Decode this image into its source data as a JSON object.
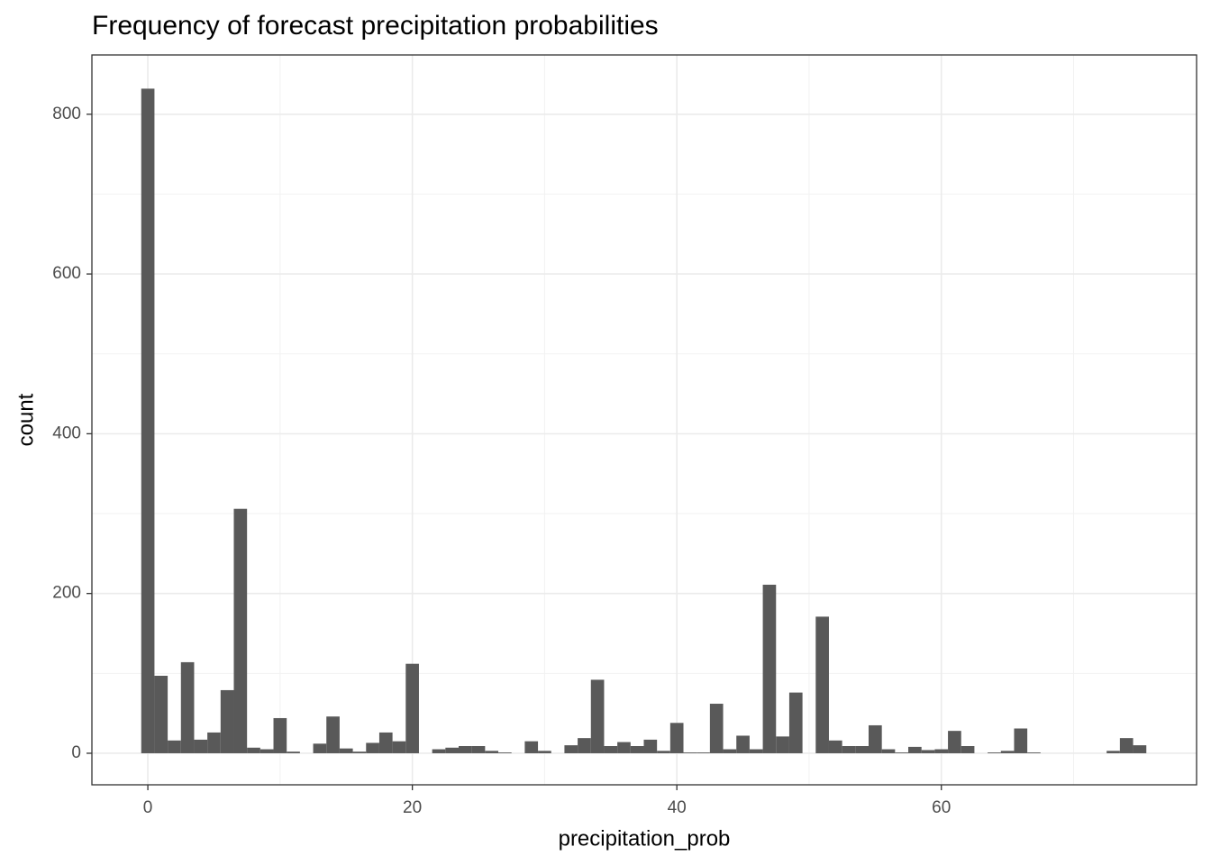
{
  "chart_data": {
    "type": "histogram",
    "title": "Frequency of forecast precipitation probabilities",
    "x_label": "precipitation_prob",
    "y_label": "count",
    "bins": [
      -0.5,
      0.5,
      1.5,
      2.5,
      3.5,
      4.5,
      5.5,
      6.5,
      7.5,
      8.5,
      9.5,
      10.5,
      11.5,
      12.5,
      13.5,
      14.5,
      15.5,
      16.5,
      17.5,
      18.5,
      19.5,
      20.5,
      21.5,
      22.5,
      23.5,
      24.5,
      25.5,
      26.5,
      27.5,
      28.5,
      29.5,
      30.5,
      31.5,
      32.5,
      33.5,
      34.5,
      35.5,
      36.5,
      37.5,
      38.5,
      39.5,
      40.5,
      41.5,
      42.5,
      43.5,
      44.5,
      45.5,
      46.5,
      47.5,
      48.5,
      49.5,
      50.5,
      51.5,
      52.5,
      53.5,
      54.5,
      55.5,
      56.5,
      57.5,
      58.5,
      59.5,
      60.5,
      61.5,
      62.5,
      63.5,
      64.5,
      65.5,
      66.5,
      67.5,
      68.5,
      69.5,
      70.5,
      71.5,
      72.5,
      73.5,
      74.5,
      75.5
    ],
    "counts": [
      832,
      97,
      16,
      114,
      17,
      26,
      79,
      306,
      7,
      5,
      44,
      2,
      0,
      12,
      46,
      6,
      2,
      13,
      26,
      15,
      112,
      0,
      5,
      7,
      9,
      9,
      3,
      1,
      0,
      15,
      3,
      0,
      10,
      19,
      92,
      9,
      14,
      9,
      17,
      3,
      38,
      1,
      1,
      62,
      5,
      22,
      5,
      211,
      21,
      76,
      0,
      171,
      16,
      9,
      9,
      35,
      5,
      1,
      8,
      4,
      5,
      28,
      9,
      0,
      1,
      3,
      31,
      1,
      0,
      0,
      0,
      0,
      0,
      3,
      19,
      10
    ],
    "color": "#595959",
    "xlim": [
      -4.23,
      79.3
    ],
    "ylim": [
      -39.5,
      874.2
    ],
    "xticks": [
      0,
      20,
      40,
      60
    ],
    "yticks": [
      0,
      200,
      400,
      600,
      800
    ],
    "grid": true
  }
}
